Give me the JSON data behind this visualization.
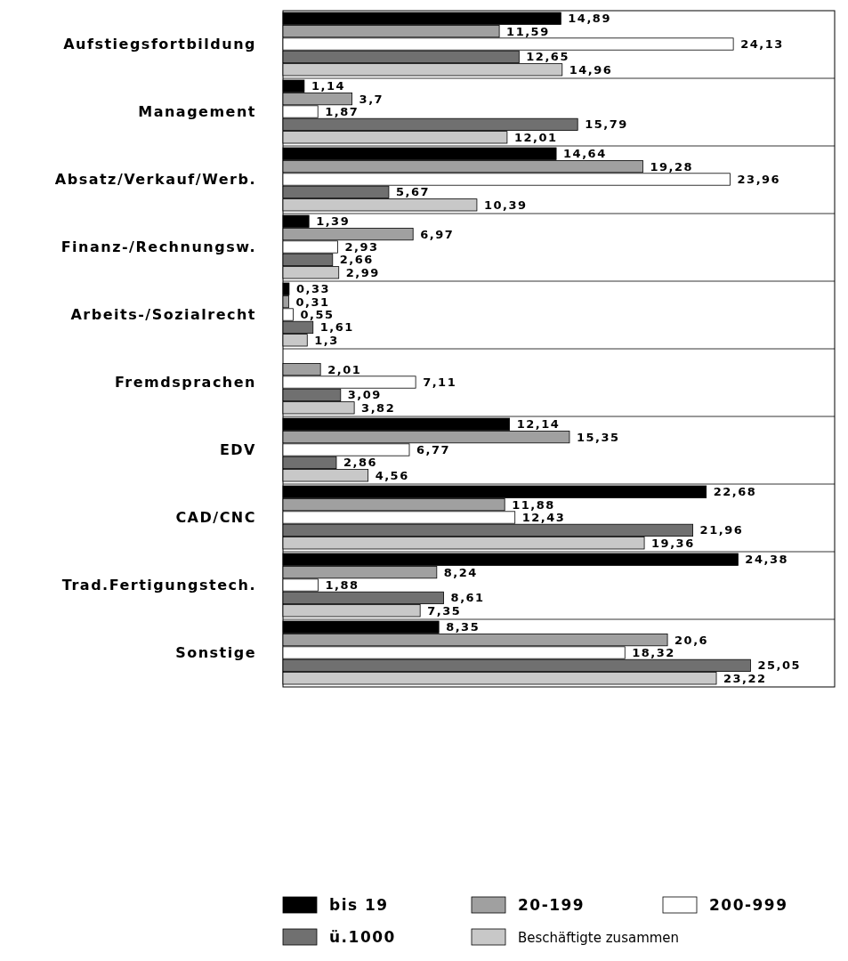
{
  "chart_data": {
    "type": "bar",
    "orientation": "horizontal",
    "categories": [
      "Aufstiegsfortbildung",
      "Management",
      "Absatz/Verkauf/Werb.",
      "Finanz-/Rechnungsw.",
      "Arbeits-/Sozialrecht",
      "Fremdsprachen",
      "EDV",
      "CAD/CNC",
      "Trad.Fertigungstech.",
      "Sonstige"
    ],
    "series": [
      {
        "name": "bis 19",
        "color": "#000000",
        "values": [
          14.89,
          1.14,
          14.64,
          1.39,
          0.33,
          null,
          12.14,
          22.68,
          24.38,
          8.35
        ],
        "value_labels": [
          "14,89",
          "1,14",
          "14,64",
          "1,39",
          "0,33",
          null,
          "12,14",
          "22,68",
          "24,38",
          "8,35"
        ]
      },
      {
        "name": "20-199",
        "color": "#a0a0a0",
        "values": [
          11.59,
          3.7,
          19.28,
          6.97,
          0.31,
          2.01,
          15.35,
          11.88,
          8.24,
          20.6
        ],
        "value_labels": [
          "11,59",
          "3,7",
          "19,28",
          "6,97",
          "0,31",
          "2,01",
          "15,35",
          "11,88",
          "8,24",
          "20,6"
        ]
      },
      {
        "name": "200-999",
        "color": "#ffffff",
        "values": [
          24.13,
          1.87,
          23.96,
          2.93,
          0.55,
          7.11,
          6.77,
          12.43,
          1.88,
          18.32
        ],
        "value_labels": [
          "24,13",
          "1,87",
          "23,96",
          "2,93",
          "0,55",
          "7,11",
          "6,77",
          "12,43",
          "1,88",
          "18,32"
        ]
      },
      {
        "name": "ü.1000",
        "color": "#707070",
        "values": [
          12.65,
          15.79,
          5.67,
          2.66,
          1.61,
          3.09,
          2.86,
          21.96,
          8.61,
          25.05
        ],
        "value_labels": [
          "12,65",
          "15,79",
          "5,67",
          "2,66",
          "1,61",
          "3,09",
          "2,86",
          "21,96",
          "8,61",
          "25,05"
        ]
      },
      {
        "name": "Beschäftigte zusammen",
        "color": "#c8c8c8",
        "values": [
          14.96,
          12.01,
          10.39,
          2.99,
          1.3,
          3.82,
          4.56,
          19.36,
          7.35,
          23.22
        ],
        "value_labels": [
          "14,96",
          "12,01",
          "10,39",
          "2,99",
          "1,3",
          "3,82",
          "4,56",
          "19,36",
          "7,35",
          "23,22"
        ]
      }
    ],
    "legend": "bottom"
  }
}
